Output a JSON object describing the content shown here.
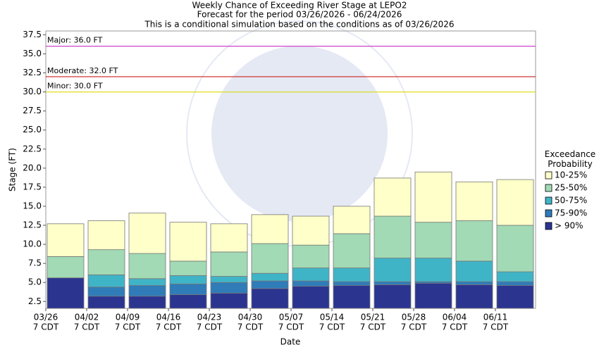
{
  "chart_data": {
    "type": "range_bar",
    "title": "Weekly Chance of Exceeding River Stage at LEPO2",
    "subtitle": "Forecast for the period 03/26/2026 - 06/24/2026",
    "note": "This is a conditional simulation based on the conditions as of 03/26/2026",
    "x_label": "Date",
    "y_label": "Stage (FT)",
    "legend_title": "Exceedance Probability",
    "categories": [
      "03/26",
      "04/02",
      "04/09",
      "04/16",
      "04/23",
      "04/30",
      "05/07",
      "05/14",
      "05/21",
      "05/28",
      "06/04",
      "06/11"
    ],
    "category_sublabels": [
      "7 CDT",
      "7 CDT",
      "7 CDT",
      "7 CDT",
      "7 CDT",
      "7 CDT",
      "7 CDT",
      "7 CDT",
      "7 CDT",
      "7 CDT",
      "7 CDT",
      "7 CDT"
    ],
    "series": [
      {
        "name": "> 90%",
        "color": "#2b3590",
        "values": [
          5.6,
          3.2,
          3.2,
          3.4,
          3.6,
          4.2,
          4.5,
          4.6,
          4.7,
          4.9,
          4.7,
          4.6
        ]
      },
      {
        "name": "75-90%",
        "color": "#2f7cb9",
        "values": [
          5.6,
          4.4,
          4.6,
          4.8,
          5.0,
          5.2,
          5.2,
          5.1,
          5.1,
          5.1,
          5.1,
          5.1
        ]
      },
      {
        "name": "50-75%",
        "color": "#40b4c7",
        "values": [
          5.6,
          6.0,
          5.5,
          5.9,
          5.8,
          6.2,
          6.9,
          6.9,
          8.2,
          8.2,
          7.8,
          6.4
        ]
      },
      {
        "name": "25-50%",
        "color": "#a1dab5",
        "values": [
          8.4,
          9.3,
          8.8,
          7.8,
          9.0,
          10.1,
          9.9,
          11.4,
          13.7,
          12.9,
          13.1,
          12.5
        ]
      },
      {
        "name": "10-25%",
        "color": "#ffffc9",
        "values": [
          12.7,
          13.1,
          14.1,
          12.9,
          12.7,
          13.9,
          13.7,
          15.0,
          18.7,
          19.5,
          18.2,
          18.5
        ]
      }
    ],
    "thresholds": [
      {
        "label": "Major: 36.0 FT",
        "value": 36,
        "color": "#cc44cc"
      },
      {
        "label": "Moderate: 32.0 FT",
        "value": 32,
        "color": "#cc2222"
      },
      {
        "label": "Minor: 30.0 FT",
        "value": 30,
        "color": "#dddd22"
      }
    ],
    "ylim": [
      1.6,
      38
    ],
    "yticks": [
      2.5,
      {
        "value": 5,
        "label": "5.0"
      },
      7.5,
      {
        "value": 10,
        "label": "10.0"
      },
      12.5,
      {
        "value": 15,
        "label": "15.0"
      },
      17.5,
      {
        "value": 20,
        "label": "20.0"
      },
      22.5,
      {
        "value": 25,
        "label": "25.0"
      },
      27.5,
      {
        "value": 30,
        "label": "30.0"
      },
      32.5,
      {
        "value": 35,
        "label": "35.0"
      },
      37.5
    ]
  }
}
